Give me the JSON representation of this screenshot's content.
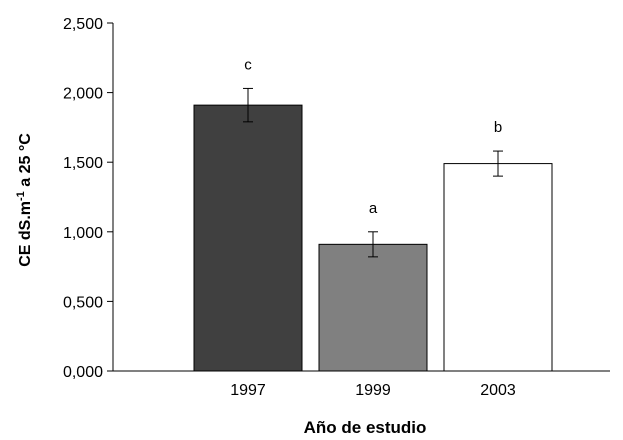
{
  "chart_data": {
    "type": "bar",
    "title": "",
    "xlabel": "Año de estudio",
    "ylabel_main": "CE dS.m",
    "ylabel_sup": "-1",
    "ylabel_rest": " a 25  °C",
    "ylim": [
      0,
      2.5
    ],
    "yticks": [
      "0,000",
      "0,500",
      "1,000",
      "1,500",
      "2,000",
      "2,500"
    ],
    "ytick_values": [
      0,
      0.5,
      1.0,
      1.5,
      2.0,
      2.5
    ],
    "grid": false,
    "legend": "none",
    "categories": [
      "1997",
      "1999",
      "2003"
    ],
    "values": [
      1.91,
      0.91,
      1.49
    ],
    "errors": [
      0.12,
      0.09,
      0.09
    ],
    "significance": [
      "c",
      "a",
      "b"
    ],
    "colors": [
      "#404040",
      "#808080",
      "#ffffff"
    ]
  }
}
